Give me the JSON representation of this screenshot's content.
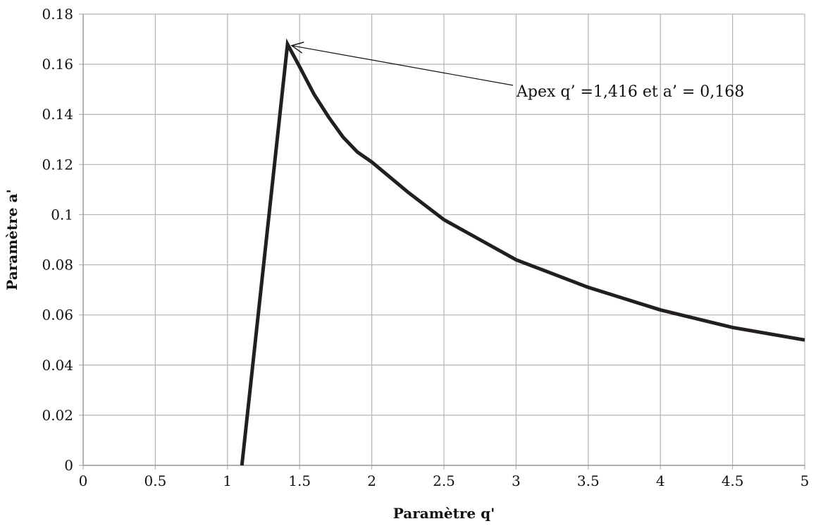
{
  "chart_data": {
    "type": "line",
    "title": "",
    "xlabel": "Paramètre q'",
    "ylabel": "Paramètre a'",
    "xlim": [
      0,
      5
    ],
    "ylim": [
      0,
      0.18
    ],
    "x_ticks": [
      "0",
      "0.5",
      "1",
      "1.5",
      "2",
      "2.5",
      "3",
      "3.5",
      "4",
      "4.5",
      "5"
    ],
    "y_ticks": [
      "0",
      "0.02",
      "0.04",
      "0.06",
      "0.08",
      "0.1",
      "0.12",
      "0.14",
      "0.16",
      "0.18"
    ],
    "grid": true,
    "legend": "none",
    "line_color": "#231f20",
    "series": [
      {
        "x": [
          1.1,
          1.416,
          1.5,
          1.6,
          1.7,
          1.8,
          1.9,
          2.0,
          2.25,
          2.5,
          2.75,
          3.0,
          3.5,
          4.0,
          4.5,
          5.0
        ],
        "y": [
          0.0,
          0.168,
          0.159,
          0.148,
          0.139,
          0.131,
          0.125,
          0.121,
          0.109,
          0.098,
          0.09,
          0.082,
          0.071,
          0.062,
          0.055,
          0.05
        ]
      }
    ],
    "annotations": [
      {
        "text": "Apex q’ =1,416 et a’ = 0,168",
        "x": 1.416,
        "y": 0.168
      }
    ]
  }
}
